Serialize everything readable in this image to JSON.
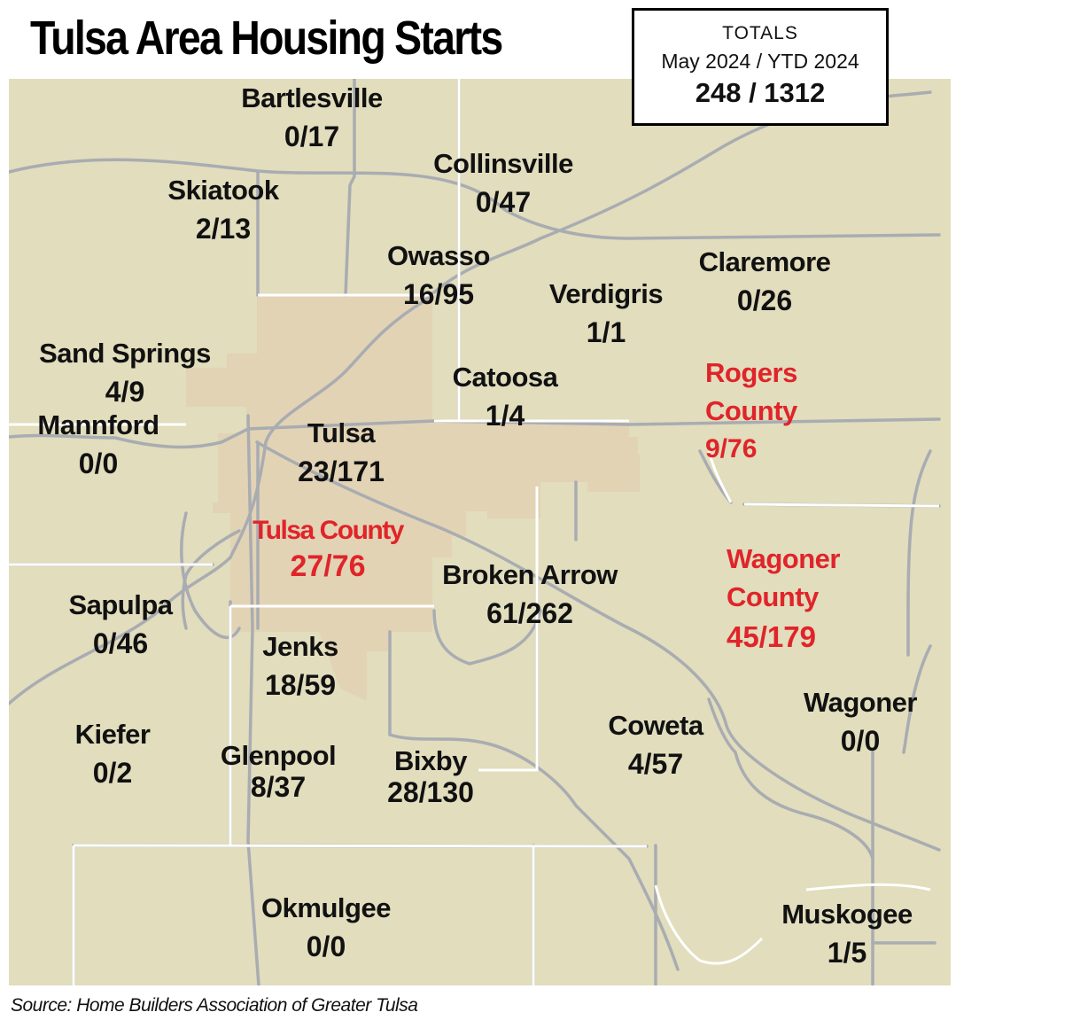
{
  "title": "Tulsa Area Housing Starts",
  "totals": {
    "heading": "TOTALS",
    "period": "May 2024 / YTD 2024",
    "values": "248 / 1312"
  },
  "colors": {
    "map_background": "#e1ddbd",
    "tulsa_city_fill": "#e2d3b5",
    "road": "#a9acb1",
    "county_label": "#e0242a"
  },
  "places": {
    "bartlesville": {
      "name": "Bartlesville",
      "value": "0/17"
    },
    "skiatook": {
      "name": "Skiatook",
      "value": "2/13"
    },
    "collinsville": {
      "name": "Collinsville",
      "value": "0/47"
    },
    "owasso": {
      "name": "Owasso",
      "value": "16/95"
    },
    "verdigris": {
      "name": "Verdigris",
      "value": "1/1"
    },
    "claremore": {
      "name": "Claremore",
      "value": "0/26"
    },
    "sand_springs": {
      "name": "Sand Springs",
      "value": "4/9"
    },
    "catoosa": {
      "name": "Catoosa",
      "value": "1/4"
    },
    "mannford": {
      "name": "Mannford",
      "value": "0/0"
    },
    "tulsa": {
      "name": "Tulsa",
      "value": "23/171"
    },
    "broken_arrow": {
      "name": "Broken Arrow",
      "value": "61/262"
    },
    "sapulpa": {
      "name": "Sapulpa",
      "value": "0/46"
    },
    "jenks": {
      "name": "Jenks",
      "value": "18/59"
    },
    "kiefer": {
      "name": "Kiefer",
      "value": "0/2"
    },
    "glenpool": {
      "name": "Glenpool",
      "value": "8/37"
    },
    "bixby": {
      "name": "Bixby",
      "value": "28/130"
    },
    "coweta": {
      "name": "Coweta",
      "value": "4/57"
    },
    "wagoner": {
      "name": "Wagoner",
      "value": "0/0"
    },
    "okmulgee": {
      "name": "Okmulgee",
      "value": "0/0"
    },
    "muskogee": {
      "name": "Muskogee",
      "value": "1/5"
    }
  },
  "counties": {
    "rogers": {
      "name_line1": "Rogers",
      "name_line2": "County",
      "value": "9/76"
    },
    "tulsa": {
      "name": "Tulsa County",
      "value": "27/76"
    },
    "wagoner": {
      "name_line1": "Wagoner",
      "name_line2": "County",
      "value": "45/179"
    }
  },
  "source": "Source: Home Builders Association of Greater Tulsa"
}
